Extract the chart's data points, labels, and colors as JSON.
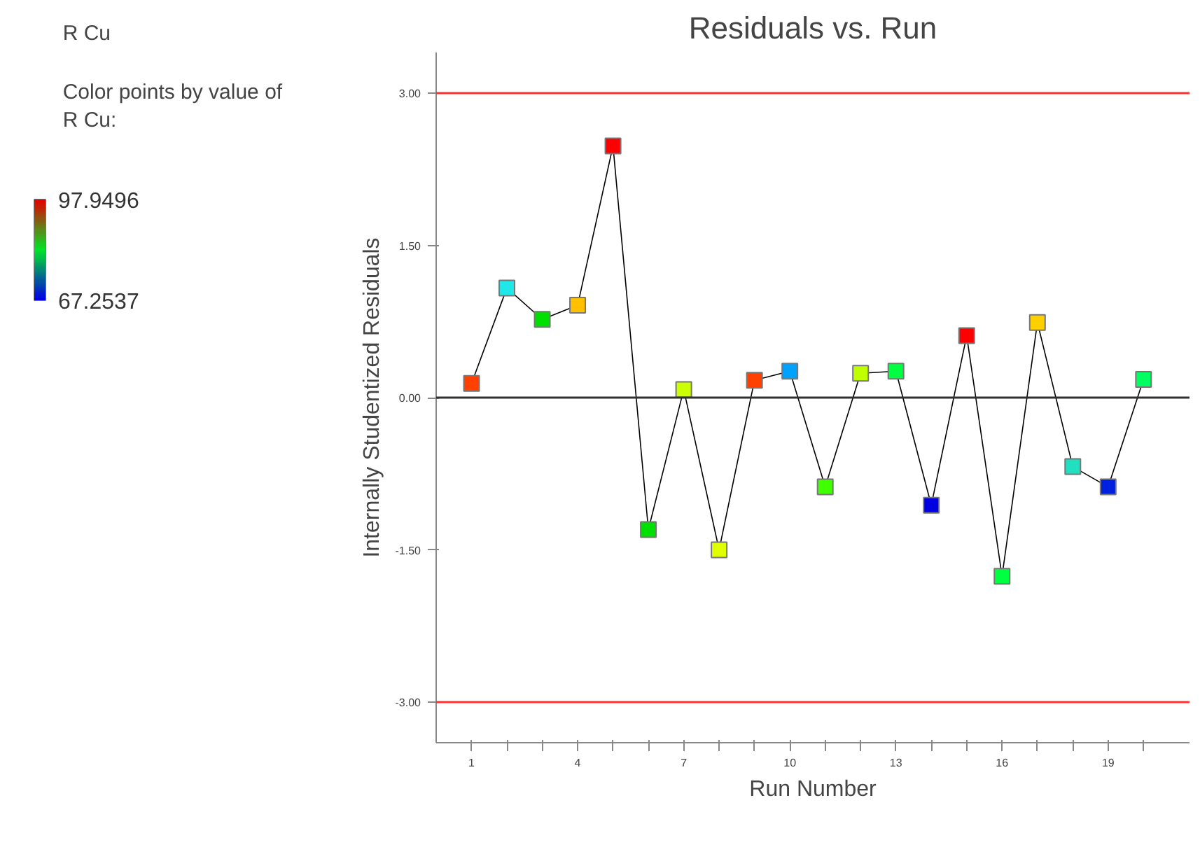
{
  "chart_data": {
    "type": "line",
    "marker": "square",
    "title": "Residuals vs. Run",
    "xlabel": "Run Number",
    "ylabel": "Internally Studentized Residuals",
    "annotations": [
      "R Cu"
    ],
    "clabel": "Color points by value of\nR Cu:",
    "clim": [
      67.2537,
      97.9496
    ],
    "cticks": [
      {
        "value": 97.9496,
        "label": "97.9496"
      },
      {
        "value": 67.2537,
        "label": "67.2537"
      }
    ],
    "x": [
      1,
      2,
      3,
      4,
      5,
      6,
      7,
      8,
      9,
      10,
      11,
      12,
      13,
      14,
      15,
      16,
      17,
      18,
      19,
      20
    ],
    "series": [
      {
        "color": "#000000",
        "line_style": "solid",
        "values": [
          0.14,
          1.08,
          0.77,
          0.91,
          2.48,
          -1.3,
          0.08,
          -1.5,
          0.17,
          0.26,
          -0.88,
          0.24,
          0.26,
          -1.06,
          0.61,
          -1.76,
          0.74,
          -0.68,
          -0.88,
          0.18
        ],
        "colors": [
          "#ff4000",
          "#20e8e8",
          "#00e000",
          "#ffc000",
          "#ff0000",
          "#00e000",
          "#ccff00",
          "#e0ff00",
          "#ff4000",
          "#00a0ff",
          "#40ff00",
          "#c0ff00",
          "#00ff40",
          "#0000e0",
          "#ff0000",
          "#00ff40",
          "#ffd000",
          "#20e0c0",
          "#0020e0",
          "#00ff60"
        ]
      }
    ],
    "xlim": [
      0,
      21.3
    ],
    "ylim": [
      -3.4,
      3.4
    ],
    "xticks": [
      1,
      {
        "value": 2,
        "label": null
      },
      {
        "value": 3,
        "label": null
      },
      4,
      {
        "value": 5,
        "label": null
      },
      {
        "value": 6,
        "label": null
      },
      7,
      {
        "value": 8,
        "label": null
      },
      {
        "value": 9,
        "label": null
      },
      10,
      {
        "value": 11,
        "label": null
      },
      {
        "value": 12,
        "label": null
      },
      13,
      {
        "value": 14,
        "label": null
      },
      {
        "value": 15,
        "label": null
      },
      16,
      {
        "value": 17,
        "label": null
      },
      {
        "value": 18,
        "label": null
      },
      19,
      {
        "value": 20,
        "label": null
      }
    ],
    "yticks": [
      {
        "value": 3,
        "label": "3.00"
      },
      {
        "value": 1.5,
        "label": "1.50"
      },
      {
        "value": 0,
        "label": "0.00"
      },
      {
        "value": -1.5,
        "label": "-1.50"
      },
      {
        "value": -3,
        "label": "-3.00"
      }
    ],
    "ref_lines": [
      {
        "axis": "y",
        "value": 3,
        "label": null,
        "color": "#ff3030"
      },
      {
        "axis": "y",
        "value": -3,
        "label": null,
        "color": "#ff3030"
      },
      {
        "axis": "y",
        "value": 0,
        "label": null,
        "color": "#303030"
      }
    ],
    "grid": false
  }
}
